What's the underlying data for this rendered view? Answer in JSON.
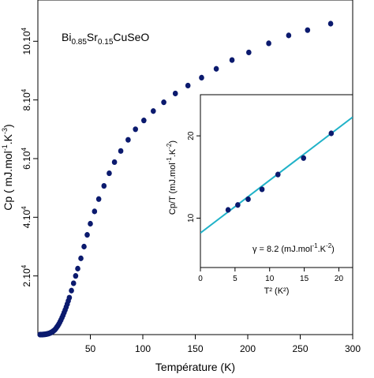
{
  "chart_data": [
    {
      "type": "scatter",
      "title": "Bi0.85Sr0.15CuSeO",
      "title_parts": {
        "base": "Bi",
        "sub1": "0.85",
        "mid": "Sr",
        "sub2": "0.15",
        "tail": "CuSeO"
      },
      "xlabel": "Température (K)",
      "ylabel": "Cp ( mJ.mol⁻¹.K⁻³)",
      "xlim": [
        0,
        300
      ],
      "ylim": [
        0,
        106000
      ],
      "x_ticks": [
        50,
        100,
        150,
        200,
        250,
        300
      ],
      "x_tick_labels": [
        "50",
        "100",
        "150",
        "200",
        "250",
        "300"
      ],
      "y_ticks": [
        20000,
        40000,
        60000,
        80000,
        100000
      ],
      "y_tick_labels": [
        {
          "mant": "2.10",
          "exp": "4"
        },
        {
          "mant": "4.10",
          "exp": "4"
        },
        {
          "mant": "6.10",
          "exp": "4"
        },
        {
          "mant": "8.10",
          "exp": "4"
        },
        {
          "mant": "10.10",
          "exp": "4"
        }
      ],
      "marker_color": "#0b1a6e",
      "grid": false,
      "points": [
        [
          2,
          0
        ],
        [
          3,
          0
        ],
        [
          4,
          10
        ],
        [
          5,
          30
        ],
        [
          6,
          60
        ],
        [
          7,
          100
        ],
        [
          8,
          160
        ],
        [
          9,
          240
        ],
        [
          10,
          330
        ],
        [
          11,
          450
        ],
        [
          12,
          600
        ],
        [
          13,
          800
        ],
        [
          14,
          1000
        ],
        [
          15,
          1300
        ],
        [
          16,
          1600
        ],
        [
          17,
          2000
        ],
        [
          18,
          2500
        ],
        [
          19,
          3000
        ],
        [
          20,
          3600
        ],
        [
          21,
          4300
        ],
        [
          22,
          5000
        ],
        [
          23,
          5800
        ],
        [
          24,
          6600
        ],
        [
          25,
          7500
        ],
        [
          26,
          8400
        ],
        [
          27,
          9400
        ],
        [
          28,
          10400
        ],
        [
          29,
          11500
        ],
        [
          30,
          12600
        ],
        [
          32,
          15000
        ],
        [
          34,
          17500
        ],
        [
          36,
          20000
        ],
        [
          38,
          22500
        ],
        [
          41,
          26000
        ],
        [
          44,
          30000
        ],
        [
          47,
          34000
        ],
        [
          50,
          37800
        ],
        [
          54,
          42000
        ],
        [
          58,
          46200
        ],
        [
          63,
          50700
        ],
        [
          68,
          55000
        ],
        [
          73,
          58800
        ],
        [
          79,
          62600
        ],
        [
          86,
          66400
        ],
        [
          93,
          70000
        ],
        [
          101,
          73000
        ],
        [
          110,
          76200
        ],
        [
          120,
          79200
        ],
        [
          131,
          82200
        ],
        [
          143,
          84900
        ],
        [
          156,
          87600
        ],
        [
          170,
          90600
        ],
        [
          185,
          93600
        ],
        [
          201,
          96200
        ],
        [
          220,
          99300
        ],
        [
          239,
          102000
        ],
        [
          257,
          103800
        ],
        [
          279,
          106000
        ]
      ]
    },
    {
      "type": "scatter",
      "xlabel": "T² (K²)",
      "ylabel": "Cp/T  (mJ.mol⁻¹.K⁻²)",
      "xlim": [
        0,
        22
      ],
      "ylim": [
        4,
        25
      ],
      "x_ticks": [
        0,
        5,
        10,
        15,
        20
      ],
      "x_tick_labels": [
        "0",
        "5",
        "10",
        "15",
        "20"
      ],
      "y_ticks": [
        10,
        20
      ],
      "y_tick_labels": [
        "10",
        "20"
      ],
      "marker_color": "#0b1a6e",
      "fit_line_color": "#20b2c8",
      "fit": {
        "intercept": 8.2,
        "slope": 0.64
      },
      "annotation": "γ = 8.2 (mJ.mol⁻¹.K⁻²)",
      "points": [
        [
          4.0,
          11.0
        ],
        [
          5.4,
          11.6
        ],
        [
          6.9,
          12.3
        ],
        [
          8.9,
          13.5
        ],
        [
          11.2,
          15.3
        ],
        [
          14.9,
          17.3
        ],
        [
          18.9,
          20.3
        ]
      ]
    }
  ]
}
